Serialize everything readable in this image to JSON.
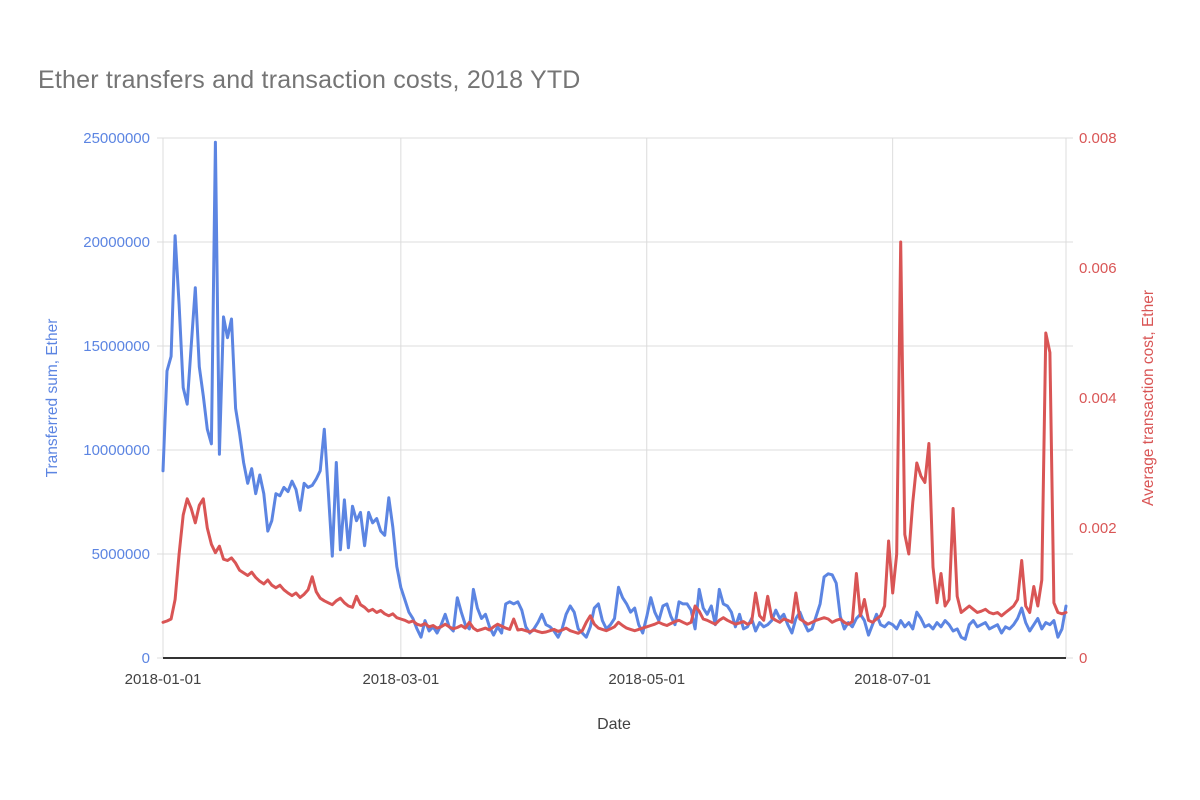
{
  "page": {
    "background": "#ffffff"
  },
  "chart_data": {
    "type": "line",
    "title": "Ether transfers and transaction costs, 2018 YTD",
    "title_color": "#757575",
    "grid": true,
    "grid_color": "#dcdcdc",
    "axis_line_color": "#333333",
    "x_tick_color": "#424242",
    "background": "#ffffff",
    "x_axis": {
      "label": "Date",
      "start_date": "2018-01-01",
      "end_date": "2018-08-13",
      "ticks": [
        {
          "label": "2018-01-01",
          "day": 0
        },
        {
          "label": "2018-03-01",
          "day": 59
        },
        {
          "label": "2018-05-01",
          "day": 120
        },
        {
          "label": "2018-07-01",
          "day": 181
        }
      ]
    },
    "y_left": {
      "label": "Transferred sum, Ether",
      "color": "#5c85e2",
      "min": 0,
      "max": 25000000,
      "tick_values": [
        0,
        5000000,
        10000000,
        15000000,
        20000000,
        25000000
      ],
      "tick_labels": [
        "0",
        "5000000",
        "10000000",
        "15000000",
        "20000000",
        "25000000"
      ]
    },
    "y_right": {
      "label": "Average transaction cost, Ether",
      "color": "#d95555",
      "min": 0,
      "max": 0.008,
      "tick_values": [
        0,
        0.002,
        0.004,
        0.006,
        0.008
      ],
      "tick_labels": [
        "0",
        "0.002",
        "0.004",
        "0.006",
        "0.008"
      ]
    },
    "series": [
      {
        "name": "Transferred sum, Ether",
        "axis": "left",
        "color": "#5c85e2",
        "values": [
          9000000,
          13800000,
          14500000,
          20300000,
          17000000,
          13000000,
          12200000,
          15000000,
          17800000,
          14000000,
          12600000,
          11000000,
          10300000,
          24800000,
          9800000,
          16400000,
          15400000,
          16300000,
          12000000,
          10800000,
          9400000,
          8400000,
          9100000,
          7900000,
          8800000,
          7900000,
          6100000,
          6600000,
          7900000,
          7800000,
          8200000,
          8000000,
          8500000,
          8100000,
          7100000,
          8400000,
          8200000,
          8300000,
          8600000,
          9000000,
          11000000,
          8000000,
          4900000,
          9400000,
          5200000,
          7600000,
          5300000,
          7300000,
          6600000,
          7000000,
          5400000,
          7000000,
          6500000,
          6700000,
          6100000,
          5900000,
          7700000,
          6300000,
          4400000,
          3400000,
          2800000,
          2200000,
          1900000,
          1400000,
          1000000,
          1800000,
          1300000,
          1500000,
          1200000,
          1600000,
          2100000,
          1500000,
          1300000,
          2900000,
          2200000,
          1600000,
          1400000,
          3300000,
          2400000,
          1900000,
          2100000,
          1500000,
          1100000,
          1500000,
          1200000,
          2600000,
          2700000,
          2600000,
          2700000,
          2300000,
          1500000,
          1200000,
          1400000,
          1700000,
          2100000,
          1600000,
          1500000,
          1300000,
          1000000,
          1400000,
          2100000,
          2500000,
          2200000,
          1400000,
          1200000,
          1000000,
          1500000,
          2400000,
          2600000,
          1800000,
          1400000,
          1600000,
          1900000,
          3400000,
          2900000,
          2600000,
          2200000,
          2400000,
          1600000,
          1200000,
          2000000,
          2900000,
          2200000,
          1800000,
          2500000,
          2600000,
          2000000,
          1600000,
          2700000,
          2600000,
          2600000,
          2300000,
          1400000,
          3300000,
          2400000,
          2100000,
          2500000,
          1600000,
          3300000,
          2600000,
          2500000,
          2200000,
          1500000,
          2100000,
          1400000,
          1500000,
          1900000,
          1300000,
          1700000,
          1500000,
          1600000,
          1800000,
          2300000,
          1900000,
          2100000,
          1600000,
          1200000,
          1900000,
          2200000,
          1700000,
          1300000,
          1400000,
          2000000,
          2600000,
          3900000,
          4050000,
          4000000,
          3600000,
          2000000,
          1400000,
          1700000,
          1500000,
          1900000,
          2100000,
          1800000,
          1100000,
          1600000,
          2100000,
          1600000,
          1500000,
          1700000,
          1600000,
          1400000,
          1800000,
          1500000,
          1700000,
          1400000,
          2200000,
          1900000,
          1500000,
          1600000,
          1400000,
          1700000,
          1500000,
          1800000,
          1600000,
          1300000,
          1400000,
          1000000,
          900000,
          1600000,
          1800000,
          1500000,
          1600000,
          1700000,
          1400000,
          1500000,
          1600000,
          1200000,
          1500000,
          1400000,
          1600000,
          1900000,
          2400000,
          1700000,
          1300000,
          1600000,
          1900000,
          1400000,
          1700000,
          1600000,
          1800000,
          1000000,
          1400000,
          2500000
        ]
      },
      {
        "name": "Average transaction cost, Ether",
        "axis": "right",
        "color": "#d95555",
        "values": [
          0.00055,
          0.00057,
          0.0006,
          0.0009,
          0.0016,
          0.0022,
          0.00245,
          0.0023,
          0.00208,
          0.00235,
          0.00245,
          0.002,
          0.00175,
          0.00162,
          0.00172,
          0.00152,
          0.0015,
          0.00154,
          0.00146,
          0.00135,
          0.00131,
          0.00127,
          0.00132,
          0.00124,
          0.00118,
          0.00114,
          0.0012,
          0.00112,
          0.00108,
          0.00112,
          0.00105,
          0.001,
          0.00096,
          0.001,
          0.00093,
          0.00098,
          0.00105,
          0.00125,
          0.00102,
          0.00092,
          0.00088,
          0.00085,
          0.00082,
          0.00088,
          0.00092,
          0.00085,
          0.0008,
          0.00078,
          0.00095,
          0.00082,
          0.00078,
          0.00072,
          0.00075,
          0.0007,
          0.00073,
          0.00068,
          0.00065,
          0.00068,
          0.00062,
          0.0006,
          0.00058,
          0.00055,
          0.00057,
          0.00052,
          0.0005,
          0.00053,
          0.00048,
          0.0005,
          0.00046,
          0.00048,
          0.00052,
          0.00048,
          0.00045,
          0.00047,
          0.0005,
          0.00046,
          0.00055,
          0.00046,
          0.00042,
          0.00044,
          0.00046,
          0.00043,
          0.00048,
          0.00052,
          0.00049,
          0.00046,
          0.00044,
          0.0006,
          0.00043,
          0.00044,
          0.00042,
          0.0004,
          0.00043,
          0.00041,
          0.00039,
          0.0004,
          0.00042,
          0.00044,
          0.00041,
          0.00043,
          0.00046,
          0.00042,
          0.0004,
          0.00038,
          0.00042,
          0.00055,
          0.00065,
          0.00052,
          0.00046,
          0.00044,
          0.00042,
          0.00045,
          0.00048,
          0.00055,
          0.0005,
          0.00046,
          0.00044,
          0.00042,
          0.00044,
          0.00046,
          0.00048,
          0.0005,
          0.00052,
          0.00055,
          0.00052,
          0.0005,
          0.00053,
          0.00056,
          0.00058,
          0.00055,
          0.00052,
          0.00055,
          0.0008,
          0.00072,
          0.0006,
          0.00058,
          0.00055,
          0.00052,
          0.00058,
          0.00062,
          0.00058,
          0.00055,
          0.00052,
          0.00054,
          0.00056,
          0.00052,
          0.00055,
          0.001,
          0.00065,
          0.00058,
          0.00095,
          0.00062,
          0.00058,
          0.00055,
          0.0006,
          0.00058,
          0.00055,
          0.001,
          0.0006,
          0.00056,
          0.00052,
          0.00055,
          0.00058,
          0.0006,
          0.00062,
          0.0006,
          0.00055,
          0.00058,
          0.0006,
          0.00055,
          0.00052,
          0.00056,
          0.0013,
          0.00065,
          0.0009,
          0.00058,
          0.00055,
          0.0006,
          0.00065,
          0.0008,
          0.0018,
          0.001,
          0.0016,
          0.0064,
          0.0019,
          0.0016,
          0.0024,
          0.003,
          0.0028,
          0.0027,
          0.0033,
          0.0014,
          0.00085,
          0.0013,
          0.0008,
          0.0009,
          0.0023,
          0.00095,
          0.0007,
          0.00075,
          0.0008,
          0.00075,
          0.0007,
          0.00072,
          0.00075,
          0.0007,
          0.00068,
          0.0007,
          0.00065,
          0.0007,
          0.00075,
          0.0008,
          0.0009,
          0.0015,
          0.0008,
          0.0007,
          0.0011,
          0.0008,
          0.0012,
          0.005,
          0.0047,
          0.00085,
          0.0007,
          0.00068,
          0.0007
        ]
      }
    ]
  }
}
